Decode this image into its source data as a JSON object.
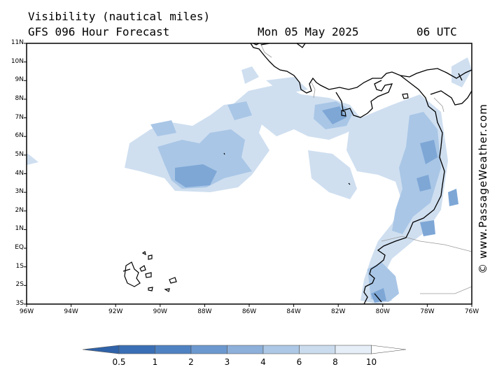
{
  "header": {
    "title": "Visibility (nautical miles)",
    "model": "GFS 096 Hour Forecast",
    "date": "Mon 05 May 2025",
    "time": "06 UTC"
  },
  "map": {
    "lat_labels": [
      "11N",
      "10N",
      "9N",
      "8N",
      "7N",
      "6N",
      "5N",
      "4N",
      "3N",
      "2N",
      "1N",
      "EQ",
      "1S",
      "2S",
      "3S"
    ],
    "lon_labels": [
      "96W",
      "94W",
      "92W",
      "90W",
      "88W",
      "86W",
      "84W",
      "82W",
      "80W",
      "78W",
      "76W"
    ],
    "lat_range": [
      -3,
      11
    ],
    "lon_range": [
      -96,
      -76
    ],
    "credit": "© www.PassageWeather.com"
  },
  "colorbar": {
    "levels": [
      "0.5",
      "1",
      "2",
      "3",
      "4",
      "6",
      "8",
      "10"
    ],
    "colors": [
      "#3a6fb5",
      "#4f82c2",
      "#6b98cf",
      "#8cb0da",
      "#adc8e6",
      "#cbdcee",
      "#e6eef8",
      "#ffffff"
    ]
  }
}
